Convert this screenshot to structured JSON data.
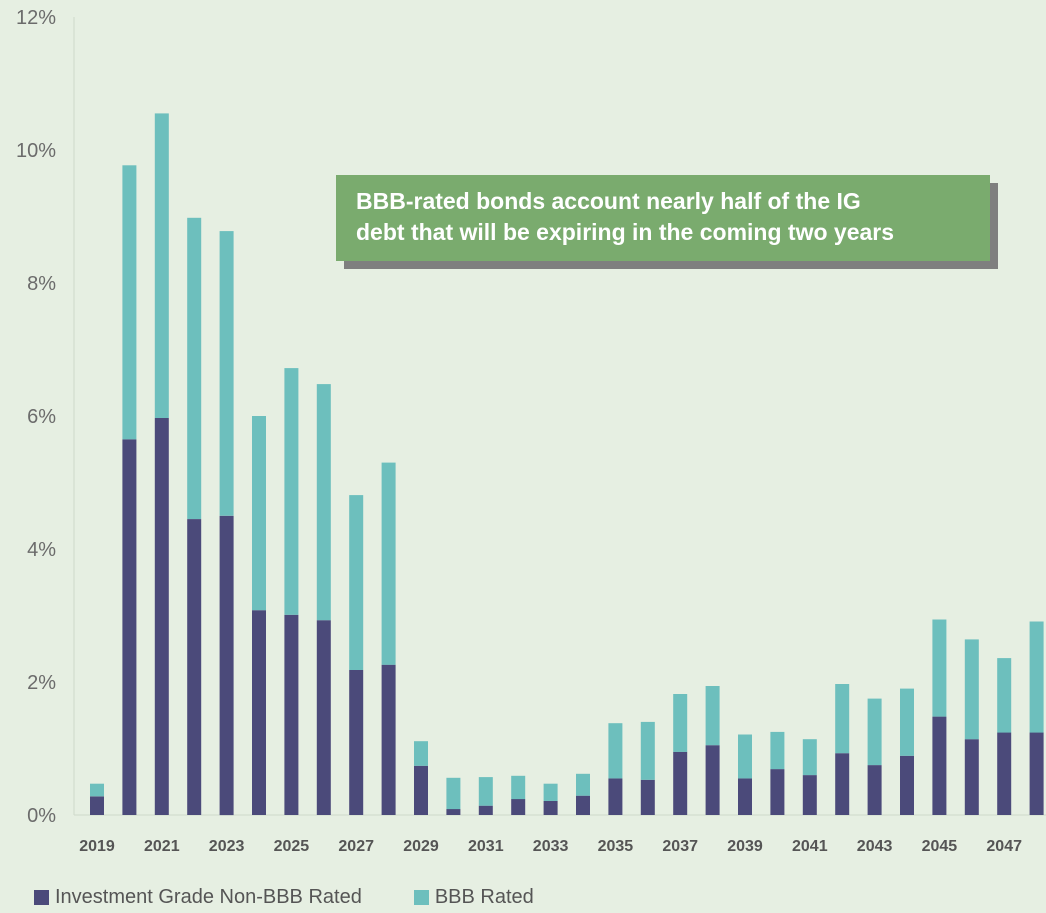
{
  "callout": {
    "line1": "BBB-rated bonds account nearly half of the IG",
    "line2": "debt that will be expiring in the coming two years"
  },
  "chart_data": {
    "type": "bar",
    "stacked": true,
    "categories": [
      "2019",
      "2020",
      "2021",
      "2022",
      "2023",
      "2024",
      "2025",
      "2026",
      "2027",
      "2028",
      "2029",
      "2030",
      "2031",
      "2032",
      "2033",
      "2034",
      "2035",
      "2036",
      "2037",
      "2038",
      "2039",
      "2040",
      "2041",
      "2042",
      "2043",
      "2044",
      "2045",
      "2046",
      "2047",
      "2048"
    ],
    "x_tick_labels": [
      "2019",
      "2021",
      "2023",
      "2025",
      "2027",
      "2029",
      "2031",
      "2033",
      "2035",
      "2037",
      "2039",
      "2041",
      "2043",
      "2045",
      "2047"
    ],
    "series": [
      {
        "name": "Investment Grade Non-BBB Rated",
        "color": "#4b4a7a",
        "values": [
          0.28,
          5.65,
          5.97,
          4.45,
          4.5,
          3.08,
          3.01,
          2.93,
          2.18,
          2.26,
          0.74,
          0.09,
          0.14,
          0.24,
          0.21,
          0.29,
          0.55,
          0.53,
          0.95,
          1.05,
          0.55,
          0.69,
          0.6,
          0.93,
          0.75,
          0.89,
          1.48,
          1.14,
          1.24,
          1.24
        ]
      },
      {
        "name": "BBB Rated",
        "color": "#6dbfbd",
        "values": [
          0.19,
          4.12,
          4.58,
          4.53,
          4.28,
          2.92,
          3.71,
          3.55,
          2.63,
          3.04,
          0.37,
          0.47,
          0.43,
          0.35,
          0.26,
          0.33,
          0.83,
          0.87,
          0.87,
          0.89,
          0.66,
          0.56,
          0.54,
          1.04,
          1.0,
          1.01,
          1.46,
          1.5,
          1.12,
          1.67
        ]
      }
    ],
    "ylim": [
      0,
      12
    ],
    "y_ticks": [
      0,
      2,
      4,
      6,
      8,
      10,
      12
    ],
    "y_tick_labels": [
      "0%",
      "2%",
      "4%",
      "6%",
      "8%",
      "10%",
      "12%"
    ],
    "grid": false,
    "legend_position": "bottom-left"
  }
}
